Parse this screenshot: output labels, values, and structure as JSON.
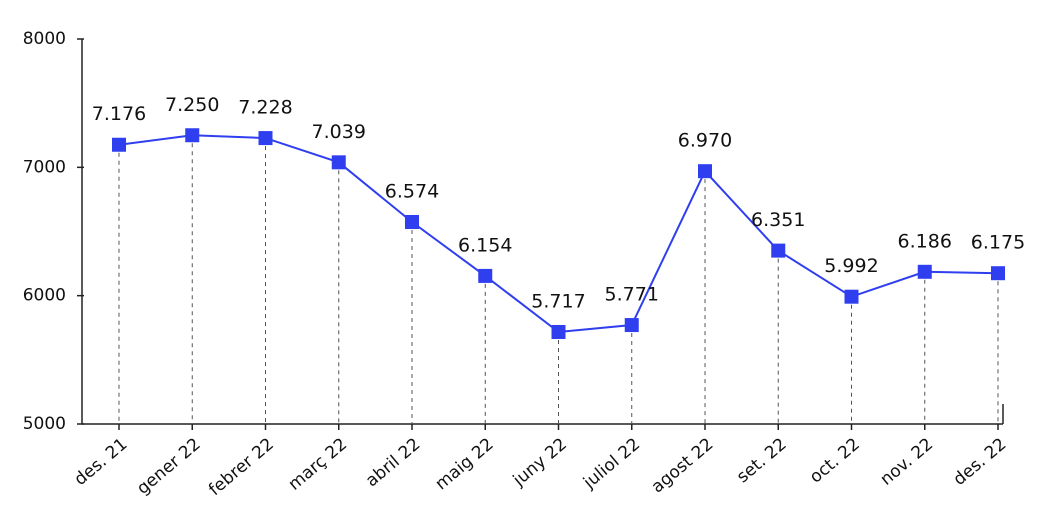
{
  "chart_data": {
    "type": "line",
    "categories": [
      "des. 21",
      "gener 22",
      "febrer 22",
      "març 22",
      "abril 22",
      "maig 22",
      "juny 22",
      "juliol 22",
      "agost 22",
      "set. 22",
      "oct. 22",
      "nov. 22",
      "des. 22"
    ],
    "series": [
      {
        "name": null,
        "color": "#2f3ff0",
        "values": [
          7176,
          7250,
          7228,
          7039,
          6574,
          6154,
          5717,
          5771,
          6970,
          6351,
          5992,
          6186,
          6175
        ],
        "value_labels": [
          "7.176",
          "7.250",
          "7.228",
          "7.039",
          "6.574",
          "6.154",
          "5.717",
          "5.771",
          "6.970",
          "6.351",
          "5.992",
          "6.186",
          "6.175"
        ]
      }
    ],
    "ylim": [
      5000,
      8000
    ],
    "yticks": [
      5000,
      6000,
      7000,
      8000
    ],
    "drop_lines": true
  }
}
